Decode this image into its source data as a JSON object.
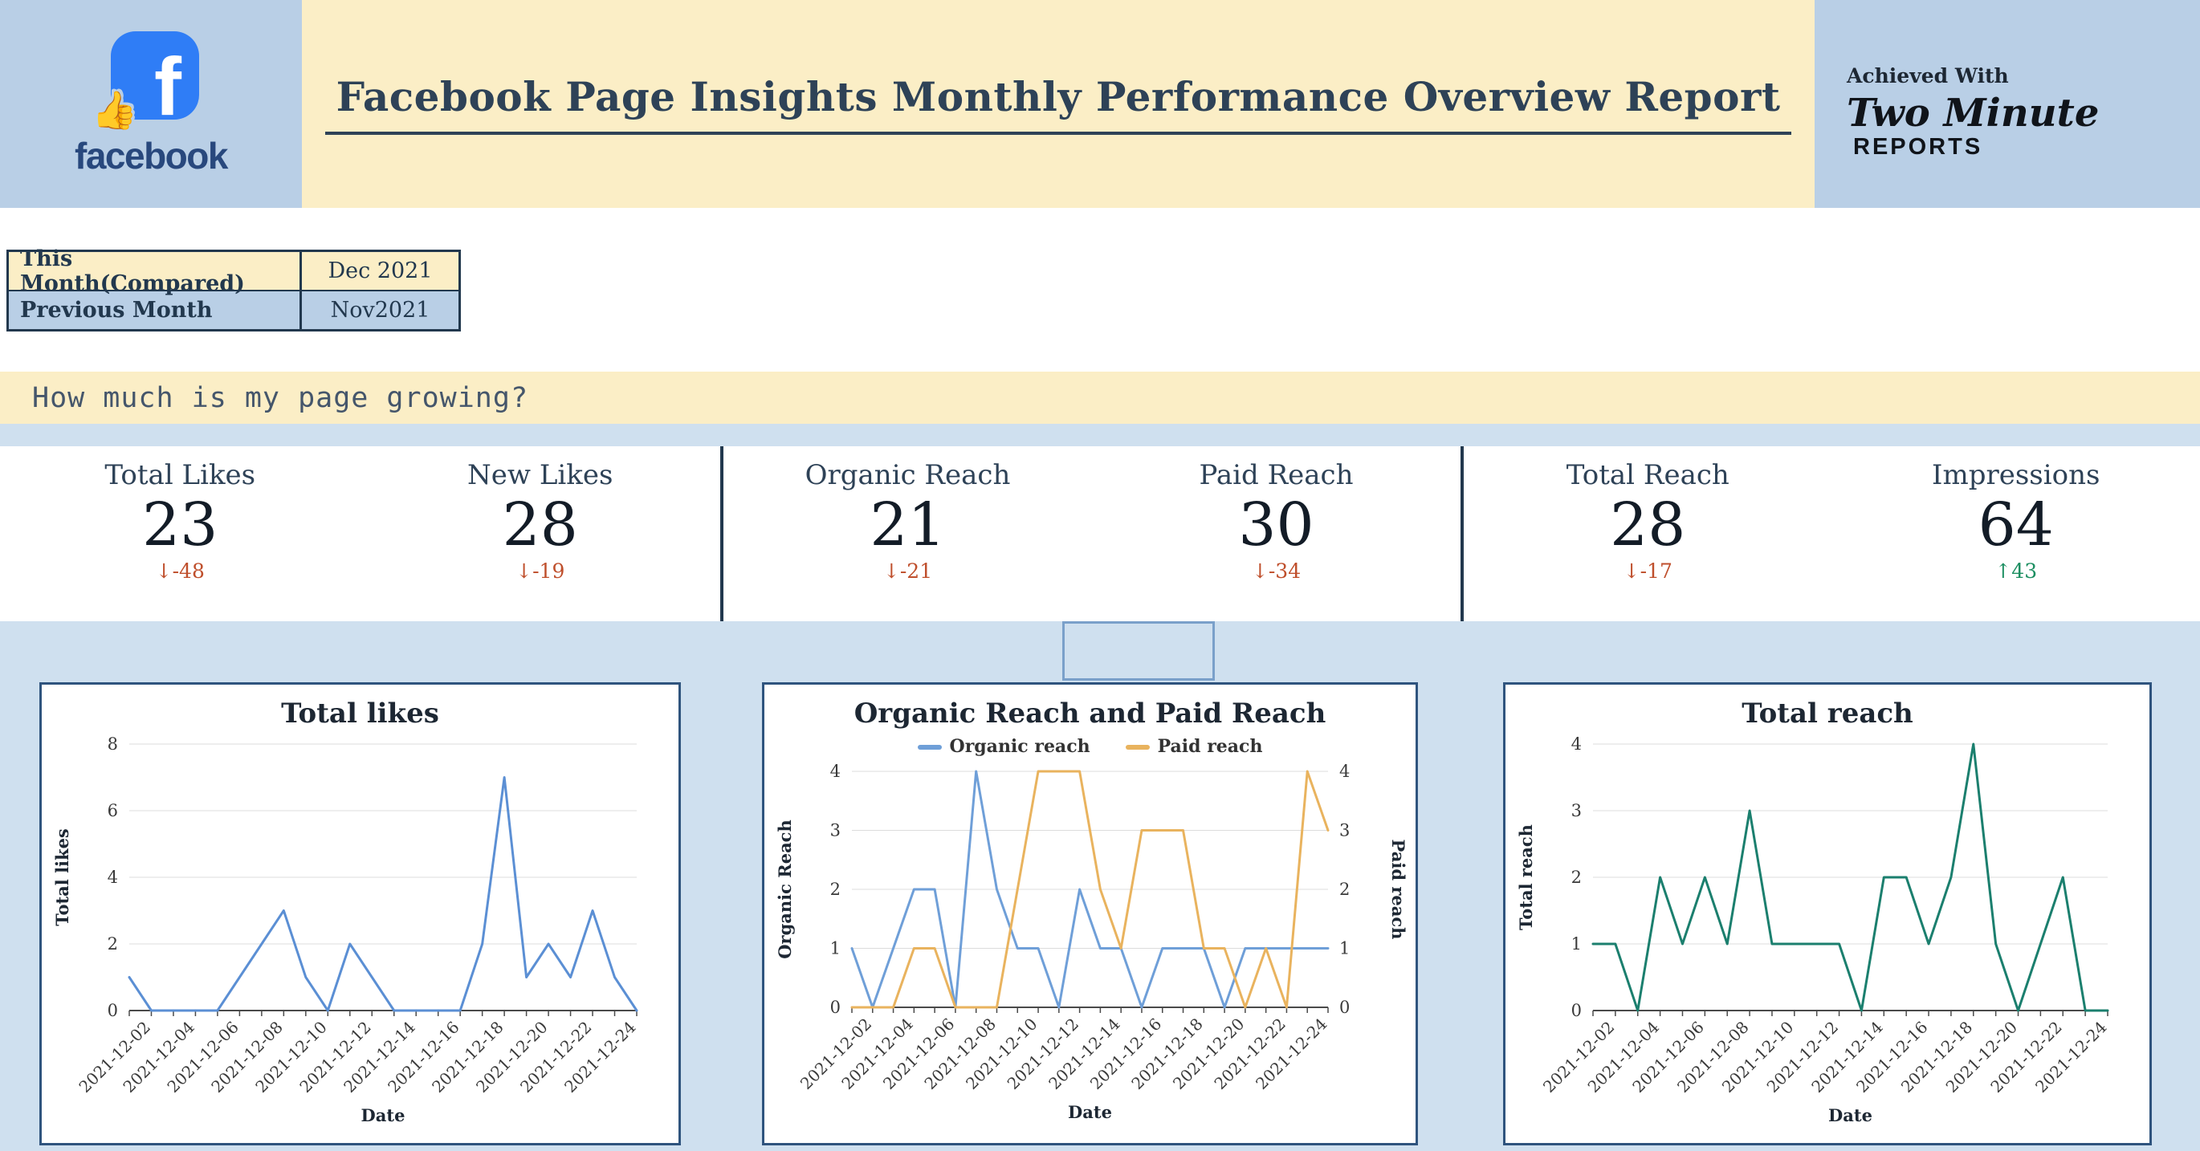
{
  "header": {
    "title": "Facebook Page Insights Monthly Performance Overview Report",
    "logo_word": "facebook",
    "achieved_with": "Achieved With",
    "brand_line1": "Two Minute",
    "brand_line2": "REPORTS"
  },
  "comparison_table": {
    "rows": [
      {
        "label": "This Month(Compared)",
        "value": "Dec 2021"
      },
      {
        "label": "Previous Month",
        "value": "Nov2021"
      }
    ]
  },
  "section_question": "How much is my page growing?",
  "kpis": [
    {
      "label": "Total Likes",
      "value": "23",
      "delta": "↓-48",
      "trend": "down"
    },
    {
      "label": "New Likes",
      "value": "28",
      "delta": "↓-19",
      "trend": "down"
    },
    {
      "label": "Organic Reach",
      "value": "21",
      "delta": "↓-21",
      "trend": "down"
    },
    {
      "label": "Paid Reach",
      "value": "30",
      "delta": "↓-34",
      "trend": "down"
    },
    {
      "label": "Total Reach",
      "value": "28",
      "delta": "↓-17",
      "trend": "down"
    },
    {
      "label": "Impressions",
      "value": "64",
      "delta": "↑43",
      "trend": "up"
    }
  ],
  "colors": {
    "header_blue": "#b9cfe6",
    "cream": "#fbeec6",
    "navy": "#2e4257",
    "page_blue": "#cfe0ef",
    "negative": "#bf4f2c",
    "positive": "#1d8f62",
    "organic_blue": "#6f9fd8",
    "paid_orange": "#e9b35e",
    "reach_teal": "#1b7f6e"
  },
  "chart_data": [
    {
      "type": "line",
      "title": "Total likes",
      "xlabel": "Date",
      "ylabel": "Total likes",
      "ylim": [
        0,
        8
      ],
      "yticks": [
        0,
        2,
        4,
        6,
        8
      ],
      "x": [
        "2021-12-01",
        "2021-12-02",
        "2021-12-03",
        "2021-12-04",
        "2021-12-05",
        "2021-12-06",
        "2021-12-07",
        "2021-12-08",
        "2021-12-09",
        "2021-12-10",
        "2021-12-11",
        "2021-12-12",
        "2021-12-13",
        "2021-12-14",
        "2021-12-15",
        "2021-12-16",
        "2021-12-17",
        "2021-12-18",
        "2021-12-19",
        "2021-12-20",
        "2021-12-21",
        "2021-12-22",
        "2021-12-23",
        "2021-12-24"
      ],
      "xtick_labels": [
        "2021-12-02",
        "2021-12-04",
        "2021-12-06",
        "2021-12-08",
        "2021-12-10",
        "2021-12-12",
        "2021-12-14",
        "2021-12-16",
        "2021-12-18",
        "2021-12-20",
        "2021-12-22",
        "2021-12-24"
      ],
      "series": [
        {
          "name": "Total likes",
          "color": "#5b8fd4",
          "values": [
            1,
            0,
            0,
            0,
            0,
            1,
            2,
            3,
            1,
            0,
            2,
            1,
            0,
            0,
            0,
            0,
            2,
            7,
            1,
            2,
            1,
            3,
            1,
            0
          ]
        }
      ]
    },
    {
      "type": "line",
      "title": "Organic Reach and Paid Reach",
      "xlabel": "Date",
      "ylabel": "Organic Reach",
      "ylabel_right": "Paid reach",
      "ylim": [
        0,
        4
      ],
      "yticks": [
        0,
        1,
        2,
        3,
        4
      ],
      "x": [
        "2021-12-01",
        "2021-12-02",
        "2021-12-03",
        "2021-12-04",
        "2021-12-05",
        "2021-12-06",
        "2021-12-07",
        "2021-12-08",
        "2021-12-09",
        "2021-12-10",
        "2021-12-11",
        "2021-12-12",
        "2021-12-13",
        "2021-12-14",
        "2021-12-15",
        "2021-12-16",
        "2021-12-17",
        "2021-12-18",
        "2021-12-19",
        "2021-12-20",
        "2021-12-21",
        "2021-12-22",
        "2021-12-23",
        "2021-12-24"
      ],
      "xtick_labels": [
        "2021-12-02",
        "2021-12-04",
        "2021-12-06",
        "2021-12-08",
        "2021-12-10",
        "2021-12-12",
        "2021-12-14",
        "2021-12-16",
        "2021-12-18",
        "2021-12-20",
        "2021-12-22",
        "2021-12-24"
      ],
      "series": [
        {
          "name": "Organic reach",
          "color": "#6f9fd8",
          "values": [
            1,
            0,
            1,
            2,
            2,
            0,
            4,
            2,
            1,
            1,
            0,
            2,
            1,
            1,
            0,
            1,
            1,
            1,
            0,
            1,
            1,
            1,
            1,
            1
          ]
        },
        {
          "name": "Paid reach",
          "color": "#e9b35e",
          "values": [
            0,
            0,
            0,
            1,
            1,
            0,
            0,
            0,
            2,
            4,
            4,
            4,
            2,
            1,
            3,
            3,
            3,
            1,
            1,
            0,
            1,
            0,
            4,
            3
          ]
        }
      ]
    },
    {
      "type": "line",
      "title": "Total reach",
      "xlabel": "Date",
      "ylabel": "Total reach",
      "ylim": [
        0,
        4
      ],
      "yticks": [
        0,
        1,
        2,
        3,
        4
      ],
      "x": [
        "2021-12-01",
        "2021-12-02",
        "2021-12-03",
        "2021-12-04",
        "2021-12-05",
        "2021-12-06",
        "2021-12-07",
        "2021-12-08",
        "2021-12-09",
        "2021-12-10",
        "2021-12-11",
        "2021-12-12",
        "2021-12-13",
        "2021-12-14",
        "2021-12-15",
        "2021-12-16",
        "2021-12-17",
        "2021-12-18",
        "2021-12-19",
        "2021-12-20",
        "2021-12-21",
        "2021-12-22",
        "2021-12-23",
        "2021-12-24"
      ],
      "xtick_labels": [
        "2021-12-02",
        "2021-12-04",
        "2021-12-06",
        "2021-12-08",
        "2021-12-10",
        "2021-12-12",
        "2021-12-14",
        "2021-12-16",
        "2021-12-18",
        "2021-12-20",
        "2021-12-22",
        "2021-12-24"
      ],
      "series": [
        {
          "name": "Total reach",
          "color": "#1b7f6e",
          "values": [
            1,
            1,
            0,
            2,
            1,
            2,
            1,
            3,
            1,
            1,
            1,
            1,
            0,
            2,
            2,
            1,
            2,
            4,
            1,
            0,
            1,
            2,
            0,
            0
          ]
        }
      ]
    }
  ]
}
